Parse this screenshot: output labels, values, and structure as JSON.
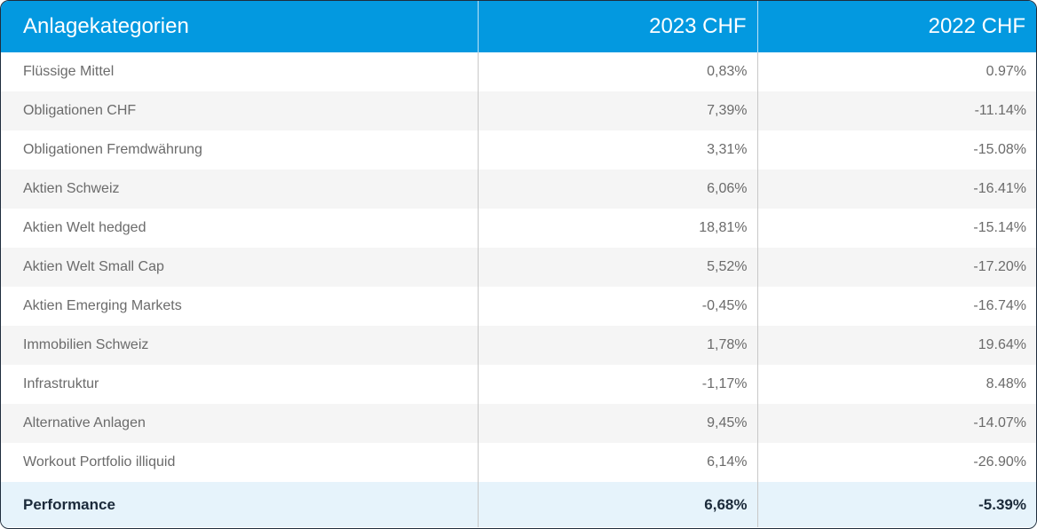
{
  "header": {
    "category": "Anlagekategorien",
    "year1": "2023 CHF",
    "year2": "2022 CHF"
  },
  "rows": [
    {
      "category": "Flüssige Mittel",
      "v2023": "0,83%",
      "v2022": "0.97%"
    },
    {
      "category": "Obligationen CHF",
      "v2023": "7,39%",
      "v2022": "-11.14%"
    },
    {
      "category": "Obligationen Fremdwährung",
      "v2023": "3,31%",
      "v2022": "-15.08%"
    },
    {
      "category": "Aktien Schweiz",
      "v2023": "6,06%",
      "v2022": "-16.41%"
    },
    {
      "category": "Aktien Welt hedged",
      "v2023": "18,81%",
      "v2022": "-15.14%"
    },
    {
      "category": "Aktien Welt Small Cap",
      "v2023": "5,52%",
      "v2022": "-17.20%"
    },
    {
      "category": "Aktien Emerging Markets",
      "v2023": "-0,45%",
      "v2022": "-16.74%"
    },
    {
      "category": "Immobilien Schweiz",
      "v2023": "1,78%",
      "v2022": "19.64%"
    },
    {
      "category": "Infrastruktur",
      "v2023": "-1,17%",
      "v2022": "8.48%"
    },
    {
      "category": "Alternative Anlagen",
      "v2023": "9,45%",
      "v2022": "-14.07%"
    },
    {
      "category": "Workout Portfolio illiquid",
      "v2023": "6,14%",
      "v2022": "-26.90%"
    }
  ],
  "total": {
    "category": "Performance",
    "v2023": "6,68%",
    "v2022": "-5.39%"
  },
  "colors": {
    "header_bg": "#0399e0",
    "total_bg": "#e6f3fb",
    "stripe_bg": "#f5f5f5"
  }
}
